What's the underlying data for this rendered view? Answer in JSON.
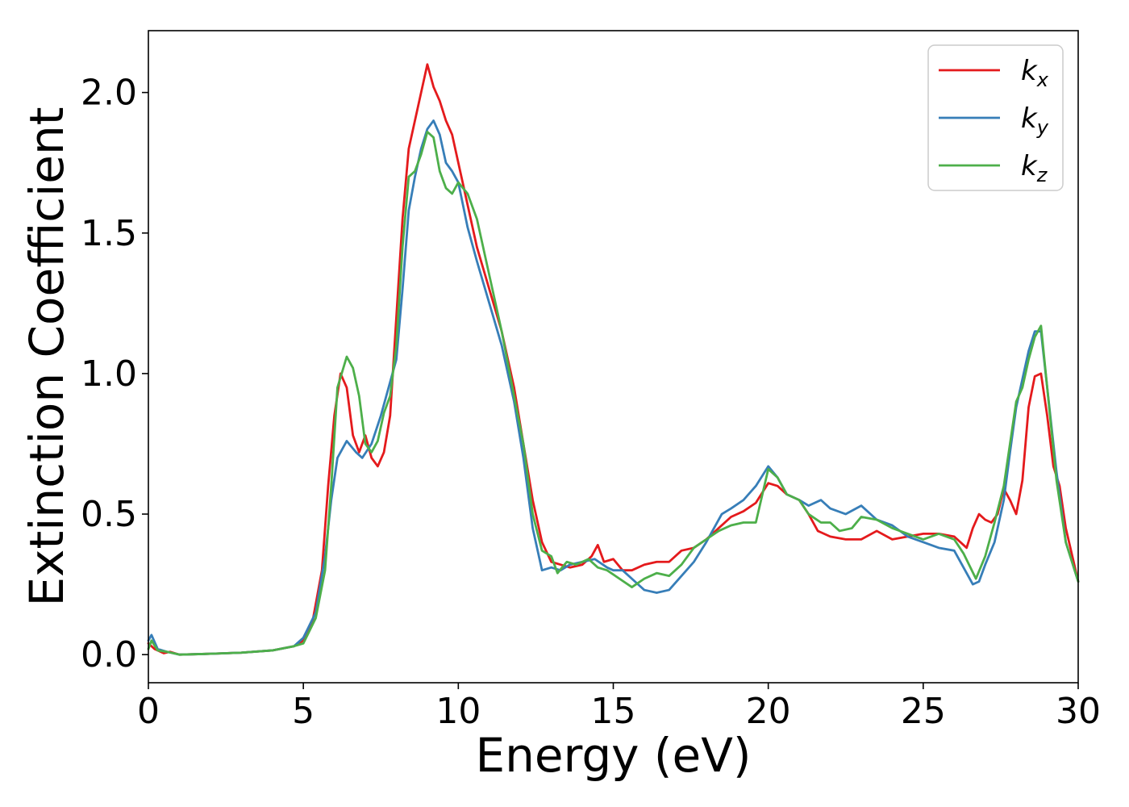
{
  "chart_data": {
    "type": "line",
    "xlabel": "Energy (eV)",
    "ylabel": "Extinction Coefficient",
    "xlim": [
      0,
      30
    ],
    "ylim": [
      -0.1,
      2.22
    ],
    "xticks": [
      0,
      5,
      10,
      15,
      20,
      25,
      30
    ],
    "yticks": [
      0.0,
      0.5,
      1.0,
      1.5,
      2.0
    ],
    "xtick_labels": [
      "0",
      "5",
      "10",
      "15",
      "20",
      "25",
      "30"
    ],
    "ytick_labels": [
      "0.0",
      "0.5",
      "1.0",
      "1.5",
      "2.0"
    ],
    "grid": false,
    "legend_position": "top-right",
    "series": [
      {
        "name": "k",
        "subscript": "x",
        "color": "#e41a1c",
        "points": [
          [
            0.0,
            0.04
          ],
          [
            0.2,
            0.02
          ],
          [
            0.5,
            0.005
          ],
          [
            0.7,
            0.01
          ],
          [
            1.0,
            0.0
          ],
          [
            2.0,
            0.003
          ],
          [
            3.0,
            0.007
          ],
          [
            4.0,
            0.015
          ],
          [
            4.7,
            0.03
          ],
          [
            5.0,
            0.05
          ],
          [
            5.3,
            0.12
          ],
          [
            5.6,
            0.3
          ],
          [
            5.8,
            0.6
          ],
          [
            6.0,
            0.85
          ],
          [
            6.2,
            1.0
          ],
          [
            6.4,
            0.95
          ],
          [
            6.6,
            0.78
          ],
          [
            6.8,
            0.72
          ],
          [
            7.0,
            0.78
          ],
          [
            7.2,
            0.7
          ],
          [
            7.4,
            0.67
          ],
          [
            7.6,
            0.72
          ],
          [
            7.8,
            0.85
          ],
          [
            8.0,
            1.2
          ],
          [
            8.2,
            1.55
          ],
          [
            8.4,
            1.8
          ],
          [
            8.6,
            1.9
          ],
          [
            8.8,
            2.0
          ],
          [
            9.0,
            2.1
          ],
          [
            9.2,
            2.02
          ],
          [
            9.4,
            1.97
          ],
          [
            9.6,
            1.9
          ],
          [
            9.8,
            1.85
          ],
          [
            10.0,
            1.75
          ],
          [
            10.3,
            1.6
          ],
          [
            10.6,
            1.45
          ],
          [
            11.0,
            1.3
          ],
          [
            11.4,
            1.15
          ],
          [
            11.8,
            0.95
          ],
          [
            12.1,
            0.75
          ],
          [
            12.4,
            0.55
          ],
          [
            12.7,
            0.4
          ],
          [
            13.0,
            0.33
          ],
          [
            13.3,
            0.32
          ],
          [
            13.6,
            0.31
          ],
          [
            14.0,
            0.32
          ],
          [
            14.3,
            0.35
          ],
          [
            14.5,
            0.39
          ],
          [
            14.7,
            0.33
          ],
          [
            15.0,
            0.34
          ],
          [
            15.3,
            0.3
          ],
          [
            15.6,
            0.3
          ],
          [
            16.0,
            0.32
          ],
          [
            16.4,
            0.33
          ],
          [
            16.8,
            0.33
          ],
          [
            17.2,
            0.37
          ],
          [
            17.6,
            0.38
          ],
          [
            18.0,
            0.41
          ],
          [
            18.4,
            0.45
          ],
          [
            18.8,
            0.49
          ],
          [
            19.2,
            0.51
          ],
          [
            19.6,
            0.54
          ],
          [
            20.0,
            0.61
          ],
          [
            20.3,
            0.6
          ],
          [
            20.6,
            0.57
          ],
          [
            21.0,
            0.55
          ],
          [
            21.3,
            0.5
          ],
          [
            21.6,
            0.44
          ],
          [
            22.0,
            0.42
          ],
          [
            22.5,
            0.41
          ],
          [
            23.0,
            0.41
          ],
          [
            23.5,
            0.44
          ],
          [
            24.0,
            0.41
          ],
          [
            24.5,
            0.42
          ],
          [
            25.0,
            0.43
          ],
          [
            25.5,
            0.43
          ],
          [
            26.0,
            0.42
          ],
          [
            26.4,
            0.38
          ],
          [
            26.6,
            0.45
          ],
          [
            26.8,
            0.5
          ],
          [
            27.0,
            0.48
          ],
          [
            27.2,
            0.47
          ],
          [
            27.4,
            0.5
          ],
          [
            27.6,
            0.59
          ],
          [
            27.8,
            0.55
          ],
          [
            28.0,
            0.5
          ],
          [
            28.2,
            0.62
          ],
          [
            28.4,
            0.88
          ],
          [
            28.6,
            0.99
          ],
          [
            28.8,
            1.0
          ],
          [
            29.0,
            0.85
          ],
          [
            29.2,
            0.67
          ],
          [
            29.4,
            0.6
          ],
          [
            29.6,
            0.45
          ],
          [
            30.0,
            0.26
          ]
        ]
      },
      {
        "name": "k",
        "subscript": "y",
        "color": "#377eb8",
        "points": [
          [
            0.0,
            0.05
          ],
          [
            0.1,
            0.07
          ],
          [
            0.3,
            0.02
          ],
          [
            0.6,
            0.01
          ],
          [
            1.0,
            0.0
          ],
          [
            2.0,
            0.003
          ],
          [
            3.0,
            0.007
          ],
          [
            4.0,
            0.015
          ],
          [
            4.7,
            0.03
          ],
          [
            5.0,
            0.06
          ],
          [
            5.4,
            0.15
          ],
          [
            5.7,
            0.35
          ],
          [
            5.9,
            0.55
          ],
          [
            6.1,
            0.7
          ],
          [
            6.4,
            0.76
          ],
          [
            6.7,
            0.72
          ],
          [
            6.9,
            0.7
          ],
          [
            7.2,
            0.75
          ],
          [
            7.5,
            0.85
          ],
          [
            7.8,
            0.97
          ],
          [
            8.0,
            1.05
          ],
          [
            8.2,
            1.3
          ],
          [
            8.4,
            1.58
          ],
          [
            8.6,
            1.7
          ],
          [
            8.8,
            1.8
          ],
          [
            9.0,
            1.87
          ],
          [
            9.2,
            1.9
          ],
          [
            9.4,
            1.85
          ],
          [
            9.6,
            1.75
          ],
          [
            9.8,
            1.72
          ],
          [
            10.0,
            1.68
          ],
          [
            10.3,
            1.52
          ],
          [
            10.6,
            1.4
          ],
          [
            11.0,
            1.25
          ],
          [
            11.4,
            1.1
          ],
          [
            11.8,
            0.9
          ],
          [
            12.1,
            0.7
          ],
          [
            12.4,
            0.45
          ],
          [
            12.7,
            0.3
          ],
          [
            13.0,
            0.31
          ],
          [
            13.3,
            0.3
          ],
          [
            13.6,
            0.32
          ],
          [
            14.0,
            0.33
          ],
          [
            14.4,
            0.34
          ],
          [
            14.8,
            0.31
          ],
          [
            15.0,
            0.3
          ],
          [
            15.3,
            0.3
          ],
          [
            15.7,
            0.26
          ],
          [
            16.0,
            0.23
          ],
          [
            16.4,
            0.22
          ],
          [
            16.8,
            0.23
          ],
          [
            17.2,
            0.28
          ],
          [
            17.6,
            0.33
          ],
          [
            18.0,
            0.4
          ],
          [
            18.3,
            0.46
          ],
          [
            18.5,
            0.5
          ],
          [
            18.8,
            0.52
          ],
          [
            19.2,
            0.55
          ],
          [
            19.6,
            0.6
          ],
          [
            20.0,
            0.67
          ],
          [
            20.3,
            0.63
          ],
          [
            20.6,
            0.57
          ],
          [
            21.0,
            0.55
          ],
          [
            21.3,
            0.53
          ],
          [
            21.7,
            0.55
          ],
          [
            22.0,
            0.52
          ],
          [
            22.5,
            0.5
          ],
          [
            23.0,
            0.53
          ],
          [
            23.5,
            0.48
          ],
          [
            24.0,
            0.46
          ],
          [
            24.5,
            0.42
          ],
          [
            25.0,
            0.4
          ],
          [
            25.5,
            0.38
          ],
          [
            26.0,
            0.37
          ],
          [
            26.3,
            0.31
          ],
          [
            26.6,
            0.25
          ],
          [
            26.8,
            0.26
          ],
          [
            27.0,
            0.32
          ],
          [
            27.3,
            0.4
          ],
          [
            27.6,
            0.55
          ],
          [
            27.8,
            0.72
          ],
          [
            28.0,
            0.88
          ],
          [
            28.2,
            0.98
          ],
          [
            28.4,
            1.08
          ],
          [
            28.6,
            1.15
          ],
          [
            28.8,
            1.15
          ],
          [
            29.0,
            0.95
          ],
          [
            29.3,
            0.65
          ],
          [
            29.6,
            0.4
          ],
          [
            30.0,
            0.26
          ]
        ]
      },
      {
        "name": "k",
        "subscript": "z",
        "color": "#4daf4a",
        "points": [
          [
            0.0,
            0.02
          ],
          [
            0.1,
            0.05
          ],
          [
            0.3,
            0.015
          ],
          [
            0.6,
            0.01
          ],
          [
            1.0,
            0.0
          ],
          [
            2.0,
            0.003
          ],
          [
            3.0,
            0.007
          ],
          [
            4.0,
            0.015
          ],
          [
            4.7,
            0.03
          ],
          [
            5.0,
            0.04
          ],
          [
            5.4,
            0.13
          ],
          [
            5.7,
            0.3
          ],
          [
            5.9,
            0.6
          ],
          [
            6.1,
            0.95
          ],
          [
            6.4,
            1.06
          ],
          [
            6.6,
            1.02
          ],
          [
            6.8,
            0.92
          ],
          [
            7.0,
            0.75
          ],
          [
            7.2,
            0.72
          ],
          [
            7.4,
            0.76
          ],
          [
            7.6,
            0.86
          ],
          [
            7.8,
            0.92
          ],
          [
            8.0,
            1.1
          ],
          [
            8.2,
            1.45
          ],
          [
            8.4,
            1.7
          ],
          [
            8.6,
            1.72
          ],
          [
            8.8,
            1.78
          ],
          [
            9.0,
            1.86
          ],
          [
            9.2,
            1.84
          ],
          [
            9.4,
            1.72
          ],
          [
            9.6,
            1.66
          ],
          [
            9.8,
            1.64
          ],
          [
            10.0,
            1.68
          ],
          [
            10.3,
            1.64
          ],
          [
            10.6,
            1.55
          ],
          [
            11.0,
            1.35
          ],
          [
            11.4,
            1.15
          ],
          [
            11.8,
            0.92
          ],
          [
            12.1,
            0.75
          ],
          [
            12.4,
            0.5
          ],
          [
            12.7,
            0.37
          ],
          [
            13.0,
            0.35
          ],
          [
            13.2,
            0.29
          ],
          [
            13.5,
            0.33
          ],
          [
            13.8,
            0.32
          ],
          [
            14.2,
            0.34
          ],
          [
            14.5,
            0.31
          ],
          [
            14.8,
            0.3
          ],
          [
            15.2,
            0.27
          ],
          [
            15.6,
            0.24
          ],
          [
            16.0,
            0.27
          ],
          [
            16.4,
            0.29
          ],
          [
            16.8,
            0.28
          ],
          [
            17.2,
            0.32
          ],
          [
            17.6,
            0.38
          ],
          [
            18.0,
            0.41
          ],
          [
            18.4,
            0.44
          ],
          [
            18.8,
            0.46
          ],
          [
            19.2,
            0.47
          ],
          [
            19.6,
            0.47
          ],
          [
            20.0,
            0.66
          ],
          [
            20.3,
            0.63
          ],
          [
            20.6,
            0.57
          ],
          [
            21.0,
            0.55
          ],
          [
            21.3,
            0.5
          ],
          [
            21.7,
            0.47
          ],
          [
            22.0,
            0.47
          ],
          [
            22.3,
            0.44
          ],
          [
            22.7,
            0.45
          ],
          [
            23.0,
            0.49
          ],
          [
            23.5,
            0.48
          ],
          [
            24.0,
            0.45
          ],
          [
            24.5,
            0.43
          ],
          [
            25.0,
            0.41
          ],
          [
            25.5,
            0.43
          ],
          [
            26.0,
            0.41
          ],
          [
            26.3,
            0.36
          ],
          [
            26.7,
            0.27
          ],
          [
            27.0,
            0.35
          ],
          [
            27.3,
            0.47
          ],
          [
            27.6,
            0.6
          ],
          [
            27.8,
            0.75
          ],
          [
            28.0,
            0.9
          ],
          [
            28.2,
            0.95
          ],
          [
            28.4,
            1.05
          ],
          [
            28.6,
            1.13
          ],
          [
            28.8,
            1.17
          ],
          [
            29.0,
            0.95
          ],
          [
            29.3,
            0.62
          ],
          [
            29.6,
            0.4
          ],
          [
            30.0,
            0.26
          ]
        ]
      }
    ]
  }
}
